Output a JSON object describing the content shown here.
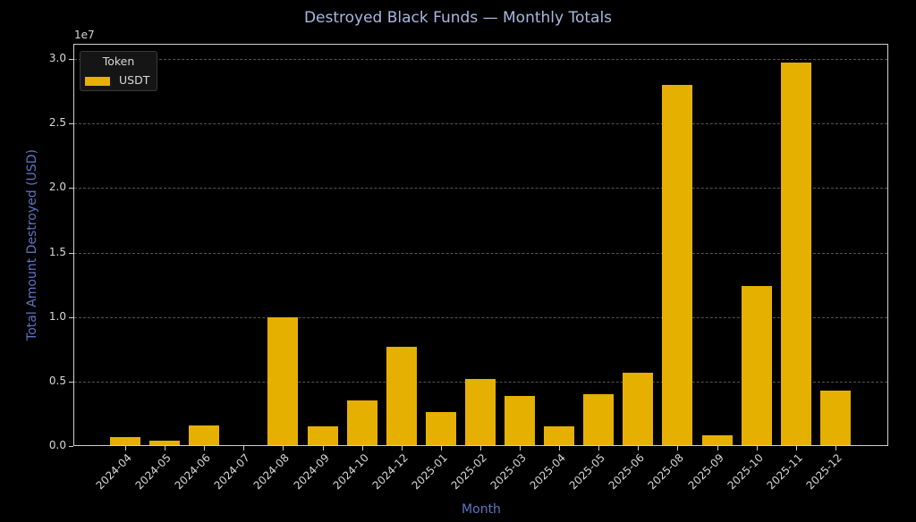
{
  "chart_data": {
    "type": "bar",
    "title": "Destroyed Black Funds — Monthly Totals",
    "xlabel": "Month",
    "ylabel": "Total Amount Destroyed (USD)",
    "y_scale_exponent": "1e7",
    "ylim": [
      0,
      31000000.0
    ],
    "yticks": [
      "0.0",
      "0.5",
      "1.0",
      "1.5",
      "2.0",
      "2.5",
      "3.0"
    ],
    "grid": "horizontal dashed",
    "legend": {
      "title": "Token",
      "position": "upper left",
      "entries": [
        "USDT"
      ]
    },
    "colors": {
      "USDT": "#e6b000",
      "background": "#000000",
      "title": "#a9b8e0",
      "axis_label": "#5f74c4"
    },
    "categories": [
      "2024-04",
      "2024-05",
      "2024-06",
      "2024-07",
      "2024-08",
      "2024-09",
      "2024-10",
      "2024-12",
      "2025-01",
      "2025-02",
      "2025-03",
      "2025-04",
      "2025-05",
      "2025-06",
      "2025-08",
      "2025-09",
      "2025-10",
      "2025-11",
      "2025-12"
    ],
    "series": [
      {
        "name": "USDT",
        "values": [
          700000,
          400000,
          1600000,
          0,
          10000000,
          1500000,
          3500000,
          7700000,
          2600000,
          5200000,
          3900000,
          1500000,
          4000000,
          5700000,
          28000000,
          800000,
          12400000,
          29700000,
          4300000
        ]
      }
    ]
  }
}
